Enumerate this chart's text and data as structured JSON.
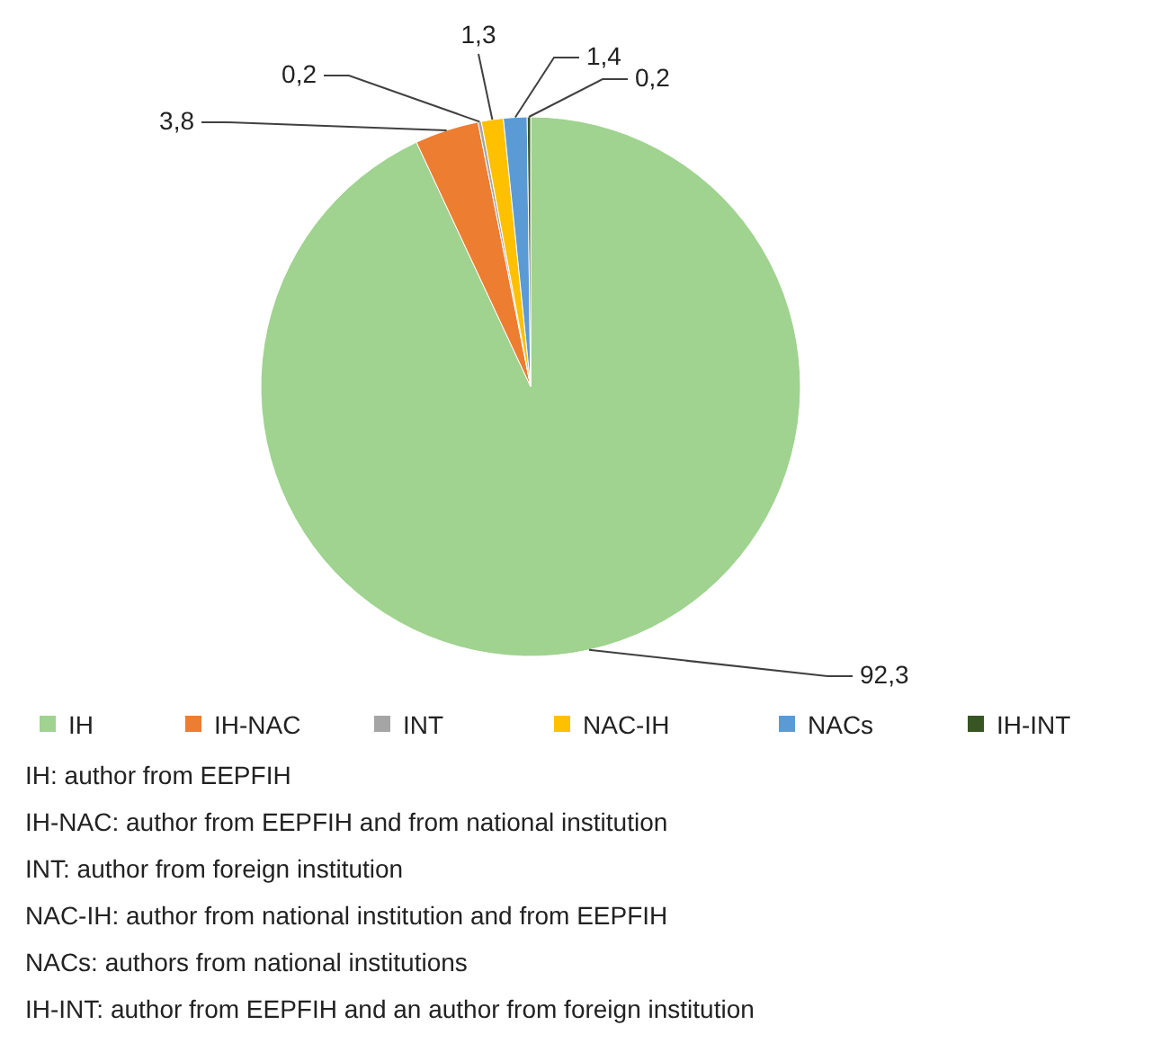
{
  "chart_data": {
    "type": "pie",
    "categories": [
      "IH",
      "IH-NAC",
      "INT",
      "NAC-IH",
      "NACs",
      "IH-INT"
    ],
    "values": [
      92.3,
      3.8,
      0.2,
      1.3,
      1.4,
      0.2
    ],
    "value_labels": [
      "92,3",
      "3,8",
      "0,2",
      "1,3",
      "1,4",
      "0,2"
    ],
    "colors": [
      "#9fd38f",
      "#ed7d31",
      "#a5a5a5",
      "#ffc000",
      "#5b9bd5",
      "#375623"
    ],
    "legend": "bottom",
    "annotations": [
      "IH: author from EEPFIH",
      "IH-NAC: author from EEPFIH and from national institution",
      "INT: author from foreign institution",
      "NAC-IH: author from national institution and from EEPFIH",
      "NACs: authors from national institutions",
      "IH-INT: author from EEPFIH and an author from foreign institution"
    ]
  }
}
